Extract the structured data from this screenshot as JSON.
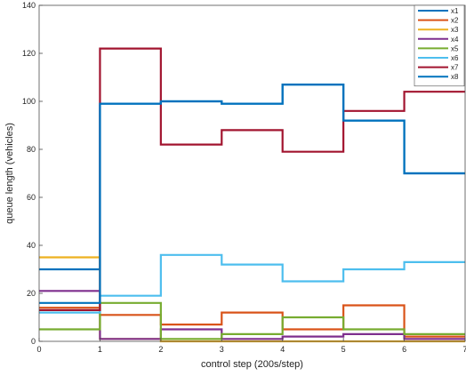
{
  "chart_data": {
    "type": "line",
    "step": true,
    "title": "",
    "xlabel": "control step (200s/step)",
    "ylabel": "queue length (vehicles)",
    "xlim": [
      0,
      7
    ],
    "ylim": [
      0,
      140
    ],
    "xticks": [
      0,
      1,
      2,
      3,
      4,
      5,
      6,
      7
    ],
    "yticks": [
      0,
      20,
      40,
      60,
      80,
      100,
      120,
      140
    ],
    "grid": false,
    "legend": "top-right",
    "x": [
      0,
      1,
      2,
      3,
      4,
      5,
      6,
      7
    ],
    "series": [
      {
        "name": "x1",
        "color": "#0072BD",
        "values": [
          30,
          99,
          100,
          99,
          107,
          92,
          70,
          70
        ]
      },
      {
        "name": "x2",
        "color": "#D95319",
        "values": [
          14,
          11,
          7,
          12,
          5,
          15,
          2,
          2
        ]
      },
      {
        "name": "x3",
        "color": "#EDB120",
        "values": [
          35,
          1,
          0,
          0,
          0,
          0,
          0,
          0
        ]
      },
      {
        "name": "x4",
        "color": "#7E2F8E",
        "values": [
          21,
          1,
          5,
          1,
          2,
          3,
          1,
          1
        ]
      },
      {
        "name": "x5",
        "color": "#77AC30",
        "values": [
          5,
          16,
          1,
          3,
          10,
          5,
          3,
          3
        ]
      },
      {
        "name": "x6",
        "color": "#4DBEEE",
        "values": [
          12,
          19,
          36,
          32,
          25,
          30,
          33,
          33
        ]
      },
      {
        "name": "x7",
        "color": "#A2142F",
        "values": [
          13,
          122,
          82,
          88,
          79,
          96,
          104,
          104
        ]
      },
      {
        "name": "x8",
        "color": "#0072BD",
        "values": [
          16,
          99,
          100,
          99,
          107,
          92,
          70,
          70
        ]
      }
    ]
  }
}
